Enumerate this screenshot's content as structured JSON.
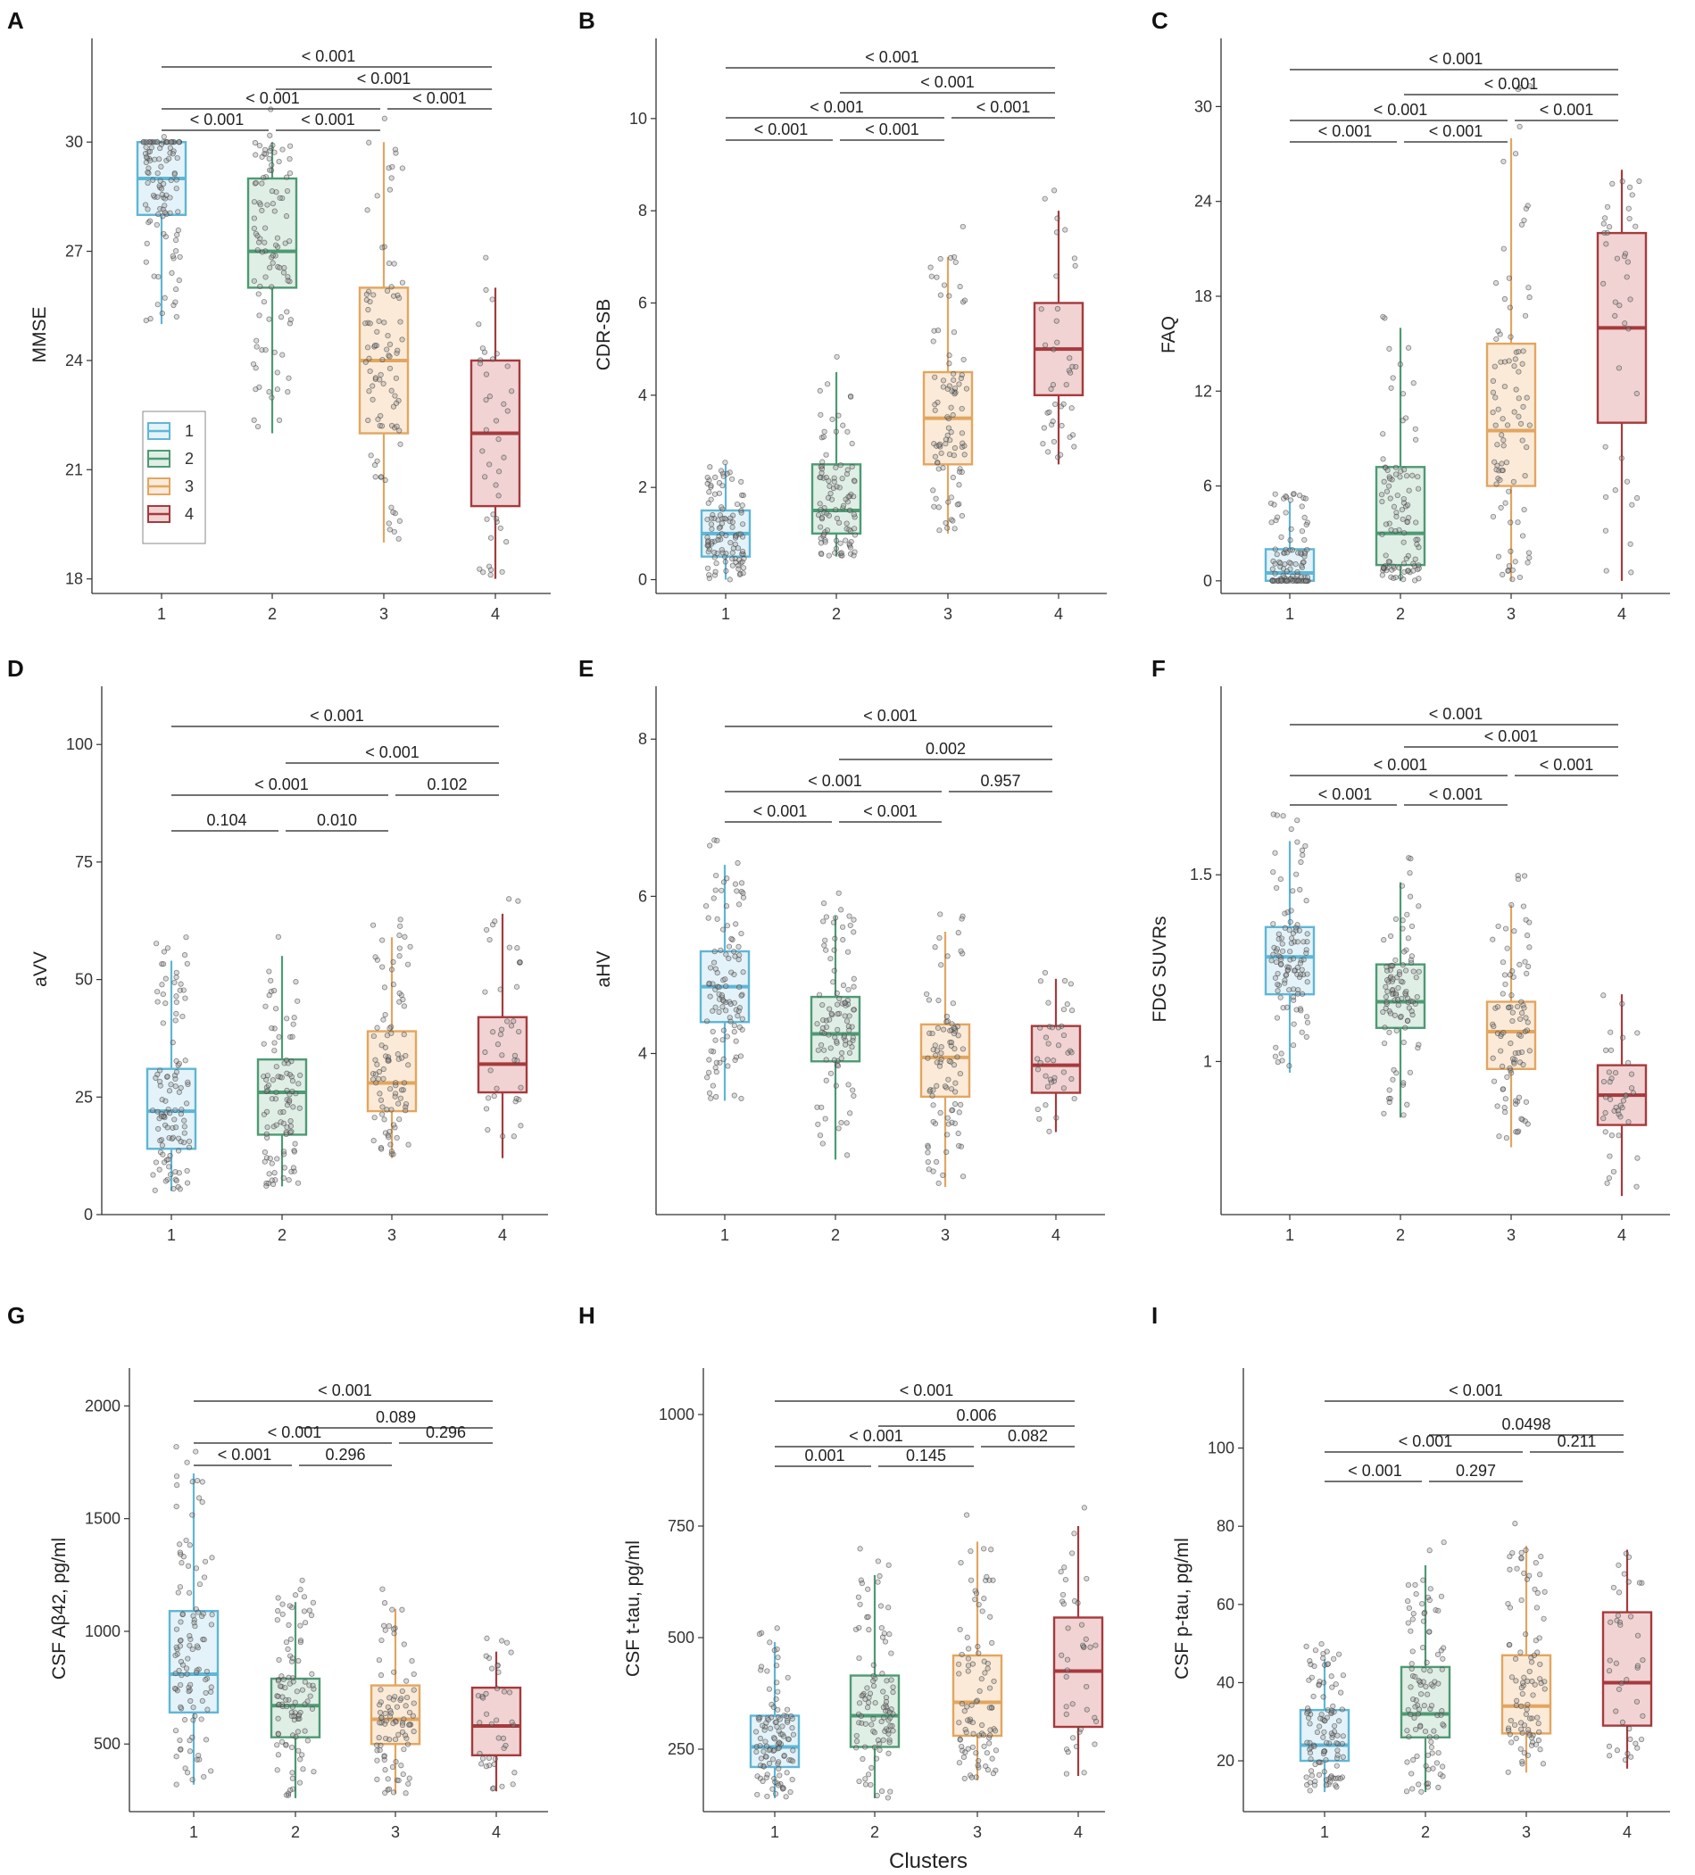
{
  "figure": {
    "x_title": "Clusters",
    "cluster_colors": [
      "#5fb6d6",
      "#4e9a73",
      "#e2a660",
      "#a63a3d"
    ],
    "cluster_fills": [
      "#e4f3f9",
      "#e0efe6",
      "#fbead7",
      "#f1d3d3"
    ],
    "legend": {
      "title": "",
      "labels": [
        "1",
        "2",
        "3",
        "4"
      ],
      "panel": "A",
      "position": "bottom-left"
    }
  },
  "chart_data": [
    {
      "panel": "A",
      "type": "box",
      "ylabel": "MMSE",
      "categories": [
        "1",
        "2",
        "3",
        "4"
      ],
      "yticks": [
        18,
        21,
        24,
        27,
        30
      ],
      "ylim": [
        17.6,
        32.8
      ],
      "boxes": [
        {
          "q1": 28,
          "median": 29,
          "q3": 30,
          "whisker_low": 25,
          "whisker_high": 30
        },
        {
          "q1": 26,
          "median": 27,
          "q3": 29,
          "whisker_low": 22,
          "whisker_high": 30
        },
        {
          "q1": 22,
          "median": 24,
          "q3": 26,
          "whisker_low": 19,
          "whisker_high": 30
        },
        {
          "q1": 20,
          "median": 22,
          "q3": 24,
          "whisker_low": 18,
          "whisker_high": 26
        }
      ],
      "points_per_cluster": [
        110,
        100,
        90,
        40
      ],
      "comparisons": [
        {
          "from": "1",
          "to": "4",
          "label": "< 0.001",
          "level": 6
        },
        {
          "from": "2",
          "to": "4",
          "label": "< 0.001",
          "level": 5
        },
        {
          "from": "1",
          "to": "3",
          "label": "< 0.001",
          "level": 4
        },
        {
          "from": "3",
          "to": "4",
          "label": "< 0.001",
          "level": 3
        },
        {
          "from": "2",
          "to": "3",
          "label": "< 0.001",
          "level": 2
        },
        {
          "from": "1",
          "to": "2",
          "label": "< 0.001",
          "level": 1
        }
      ]
    },
    {
      "panel": "B",
      "type": "box",
      "ylabel": "CDR-SB",
      "categories": [
        "1",
        "2",
        "3",
        "4"
      ],
      "yticks": [
        0,
        2,
        4,
        6,
        8,
        10
      ],
      "ylim": [
        -0.3,
        11.7
      ],
      "boxes": [
        {
          "q1": 0.5,
          "median": 1,
          "q3": 1.5,
          "whisker_low": 0,
          "whisker_high": 2.5
        },
        {
          "q1": 1,
          "median": 1.5,
          "q3": 2.5,
          "whisker_low": 0.5,
          "whisker_high": 4.5
        },
        {
          "q1": 2.5,
          "median": 3.5,
          "q3": 4.5,
          "whisker_low": 1,
          "whisker_high": 7
        },
        {
          "q1": 4,
          "median": 5,
          "q3": 6,
          "whisker_low": 2.5,
          "whisker_high": 8
        }
      ],
      "points_per_cluster": [
        110,
        100,
        90,
        40
      ],
      "comparisons": [
        {
          "from": "1",
          "to": "4",
          "label": "< 0.001",
          "level": 6
        },
        {
          "from": "2",
          "to": "4",
          "label": "< 0.001",
          "level": 5
        },
        {
          "from": "1",
          "to": "3",
          "label": "< 0.001",
          "level": 4
        },
        {
          "from": "3",
          "to": "4",
          "label": "< 0.001",
          "level": 3
        },
        {
          "from": "2",
          "to": "3",
          "label": "< 0.001",
          "level": 2
        },
        {
          "from": "1",
          "to": "2",
          "label": "< 0.001",
          "level": 1
        }
      ]
    },
    {
      "panel": "C",
      "type": "box",
      "ylabel": "FAQ",
      "categories": [
        "1",
        "2",
        "3",
        "4"
      ],
      "yticks": [
        0,
        6,
        12,
        18,
        24,
        30
      ],
      "ylim": [
        -0.8,
        34.2
      ],
      "boxes": [
        {
          "q1": 0,
          "median": 0.5,
          "q3": 2,
          "whisker_low": 0,
          "whisker_high": 5
        },
        {
          "q1": 1,
          "median": 3,
          "q3": 7.2,
          "whisker_low": 0,
          "whisker_high": 16
        },
        {
          "q1": 6,
          "median": 9.5,
          "q3": 15,
          "whisker_low": 0,
          "whisker_high": 28
        },
        {
          "q1": 10,
          "median": 16,
          "q3": 22,
          "whisker_low": 0,
          "whisker_high": 26
        }
      ],
      "points_per_cluster": [
        110,
        100,
        90,
        40
      ],
      "comparisons": [
        {
          "from": "1",
          "to": "4",
          "label": "< 0.001",
          "level": 6
        },
        {
          "from": "2",
          "to": "4",
          "label": "< 0.001",
          "level": 5
        },
        {
          "from": "1",
          "to": "3",
          "label": "< 0.001",
          "level": 4
        },
        {
          "from": "3",
          "to": "4",
          "label": "< 0.001",
          "level": 3
        },
        {
          "from": "2",
          "to": "3",
          "label": "< 0.001",
          "level": 2
        },
        {
          "from": "1",
          "to": "2",
          "label": "< 0.001",
          "level": 1
        }
      ]
    },
    {
      "panel": "D",
      "type": "box",
      "ylabel": "aVV",
      "categories": [
        "1",
        "2",
        "3",
        "4"
      ],
      "yticks": [
        0,
        25,
        50,
        75,
        100
      ],
      "ylim": [
        0,
        112
      ],
      "boxes": [
        {
          "q1": 14,
          "median": 22,
          "q3": 31,
          "whisker_low": 5,
          "whisker_high": 54
        },
        {
          "q1": 17,
          "median": 26,
          "q3": 33,
          "whisker_low": 6,
          "whisker_high": 55
        },
        {
          "q1": 22,
          "median": 28,
          "q3": 39,
          "whisker_low": 12,
          "whisker_high": 59
        },
        {
          "q1": 26,
          "median": 32,
          "q3": 42,
          "whisker_low": 12,
          "whisker_high": 64
        }
      ],
      "points_per_cluster": [
        110,
        100,
        90,
        40
      ],
      "comparisons": [
        {
          "from": "1",
          "to": "4",
          "label": "< 0.001",
          "level": 6
        },
        {
          "from": "2",
          "to": "4",
          "label": "< 0.001",
          "level": 5
        },
        {
          "from": "1",
          "to": "3",
          "label": "< 0.001",
          "level": 4
        },
        {
          "from": "3",
          "to": "4",
          "label": "0.102",
          "level": 3
        },
        {
          "from": "2",
          "to": "3",
          "label": "0.010",
          "level": 2
        },
        {
          "from": "1",
          "to": "2",
          "label": "0.104",
          "level": 1
        }
      ]
    },
    {
      "panel": "E",
      "type": "box",
      "ylabel": "aHV",
      "categories": [
        "1",
        "2",
        "3",
        "4"
      ],
      "yticks": [
        4,
        6,
        8
      ],
      "ylim": [
        1.95,
        8.65
      ],
      "boxes": [
        {
          "q1": 4.4,
          "median": 4.85,
          "q3": 5.3,
          "whisker_low": 3.4,
          "whisker_high": 6.4
        },
        {
          "q1": 3.9,
          "median": 4.25,
          "q3": 4.72,
          "whisker_low": 2.65,
          "whisker_high": 5.75
        },
        {
          "q1": 3.45,
          "median": 3.95,
          "q3": 4.37,
          "whisker_low": 2.3,
          "whisker_high": 5.55
        },
        {
          "q1": 3.5,
          "median": 3.85,
          "q3": 4.35,
          "whisker_low": 3,
          "whisker_high": 4.95
        }
      ],
      "points_per_cluster": [
        110,
        100,
        90,
        40
      ],
      "comparisons": [
        {
          "from": "1",
          "to": "4",
          "label": "< 0.001",
          "level": 6
        },
        {
          "from": "2",
          "to": "4",
          "label": "0.002",
          "level": 5
        },
        {
          "from": "1",
          "to": "3",
          "label": "< 0.001",
          "level": 4
        },
        {
          "from": "3",
          "to": "4",
          "label": "0.957",
          "level": 3
        },
        {
          "from": "2",
          "to": "3",
          "label": "< 0.001",
          "level": 2
        },
        {
          "from": "1",
          "to": "2",
          "label": "< 0.001",
          "level": 1
        }
      ]
    },
    {
      "panel": "F",
      "type": "box",
      "ylabel": "FDG SUVRs",
      "categories": [
        "1",
        "2",
        "3",
        "4"
      ],
      "yticks": [
        1.0,
        1.5
      ],
      "ylim": [
        0.59,
        2.0
      ],
      "boxes": [
        {
          "q1": 1.18,
          "median": 1.28,
          "q3": 1.36,
          "whisker_low": 0.97,
          "whisker_high": 1.59
        },
        {
          "q1": 1.09,
          "median": 1.16,
          "q3": 1.26,
          "whisker_low": 0.85,
          "whisker_high": 1.48
        },
        {
          "q1": 0.98,
          "median": 1.08,
          "q3": 1.16,
          "whisker_low": 0.77,
          "whisker_high": 1.42
        },
        {
          "q1": 0.83,
          "median": 0.91,
          "q3": 0.99,
          "whisker_low": 0.64,
          "whisker_high": 1.18
        }
      ],
      "points_per_cluster": [
        110,
        100,
        90,
        40
      ],
      "comparisons": [
        {
          "from": "1",
          "to": "4",
          "label": "< 0.001",
          "level": 6
        },
        {
          "from": "2",
          "to": "4",
          "label": "< 0.001",
          "level": 5
        },
        {
          "from": "1",
          "to": "3",
          "label": "< 0.001",
          "level": 4
        },
        {
          "from": "3",
          "to": "4",
          "label": "< 0.001",
          "level": 3
        },
        {
          "from": "2",
          "to": "3",
          "label": "< 0.001",
          "level": 2
        },
        {
          "from": "1",
          "to": "2",
          "label": "< 0.001",
          "level": 1
        }
      ]
    },
    {
      "panel": "G",
      "type": "box",
      "ylabel": "CSF Aβ42, pg/ml",
      "categories": [
        "1",
        "2",
        "3",
        "4"
      ],
      "yticks": [
        500,
        1000,
        1500,
        2000
      ],
      "ylim": [
        200,
        2160
      ],
      "boxes": [
        {
          "q1": 640,
          "median": 810,
          "q3": 1090,
          "whisker_low": 320,
          "whisker_high": 1700
        },
        {
          "q1": 530,
          "median": 670,
          "q3": 790,
          "whisker_low": 260,
          "whisker_high": 1130
        },
        {
          "q1": 500,
          "median": 610,
          "q3": 760,
          "whisker_low": 280,
          "whisker_high": 1100
        },
        {
          "q1": 450,
          "median": 580,
          "q3": 750,
          "whisker_low": 290,
          "whisker_high": 910
        }
      ],
      "points_per_cluster": [
        110,
        100,
        90,
        40
      ],
      "comparisons": [
        {
          "from": "1",
          "to": "4",
          "label": "< 0.001",
          "level": 6
        },
        {
          "from": "2",
          "to": "4",
          "label": "0.089",
          "level": 5
        },
        {
          "from": "1",
          "to": "3",
          "label": "< 0.001",
          "level": 4
        },
        {
          "from": "3",
          "to": "4",
          "label": "0.296",
          "level": 3
        },
        {
          "from": "2",
          "to": "3",
          "label": "0.296",
          "level": 2
        },
        {
          "from": "1",
          "to": "2",
          "label": "< 0.001",
          "level": 1
        }
      ]
    },
    {
      "panel": "H",
      "type": "box",
      "ylabel": "CSF t-tau, pg/ml",
      "categories": [
        "1",
        "2",
        "3",
        "4"
      ],
      "yticks": [
        250,
        500,
        750,
        1000
      ],
      "ylim": [
        110,
        1100
      ],
      "boxes": [
        {
          "q1": 210,
          "median": 255,
          "q3": 325,
          "whisker_low": 140,
          "whisker_high": 490
        },
        {
          "q1": 255,
          "median": 325,
          "q3": 415,
          "whisker_low": 140,
          "whisker_high": 640
        },
        {
          "q1": 280,
          "median": 355,
          "q3": 460,
          "whisker_low": 180,
          "whisker_high": 715
        },
        {
          "q1": 300,
          "median": 425,
          "q3": 545,
          "whisker_low": 190,
          "whisker_high": 750
        }
      ],
      "points_per_cluster": [
        110,
        100,
        90,
        40
      ],
      "comparisons": [
        {
          "from": "1",
          "to": "4",
          "label": "< 0.001",
          "level": 6
        },
        {
          "from": "2",
          "to": "4",
          "label": "0.006",
          "level": 5
        },
        {
          "from": "1",
          "to": "3",
          "label": "< 0.001",
          "level": 4
        },
        {
          "from": "3",
          "to": "4",
          "label": "0.082",
          "level": 3
        },
        {
          "from": "2",
          "to": "3",
          "label": "0.145",
          "level": 2
        },
        {
          "from": "1",
          "to": "2",
          "label": "0.001",
          "level": 1
        }
      ]
    },
    {
      "panel": "I",
      "type": "box",
      "ylabel": "CSF p-tau, pg/ml",
      "categories": [
        "1",
        "2",
        "3",
        "4"
      ],
      "yticks": [
        20,
        40,
        60,
        80,
        100
      ],
      "ylim": [
        7,
        120
      ],
      "boxes": [
        {
          "q1": 20,
          "median": 24,
          "q3": 33,
          "whisker_low": 12,
          "whisker_high": 46
        },
        {
          "q1": 26,
          "median": 32,
          "q3": 44,
          "whisker_low": 12,
          "whisker_high": 70
        },
        {
          "q1": 27,
          "median": 34,
          "q3": 47,
          "whisker_low": 17,
          "whisker_high": 75
        },
        {
          "q1": 29,
          "median": 40,
          "q3": 58,
          "whisker_low": 18,
          "whisker_high": 74
        }
      ],
      "points_per_cluster": [
        110,
        100,
        90,
        40
      ],
      "comparisons": [
        {
          "from": "1",
          "to": "4",
          "label": "< 0.001",
          "level": 6
        },
        {
          "from": "2",
          "to": "4",
          "label": "0.0498",
          "level": 5
        },
        {
          "from": "1",
          "to": "3",
          "label": "< 0.001",
          "level": 4
        },
        {
          "from": "3",
          "to": "4",
          "label": "0.211",
          "level": 3
        },
        {
          "from": "2",
          "to": "3",
          "label": "0.297",
          "level": 2
        },
        {
          "from": "1",
          "to": "2",
          "label": "< 0.001",
          "level": 1
        }
      ]
    }
  ]
}
